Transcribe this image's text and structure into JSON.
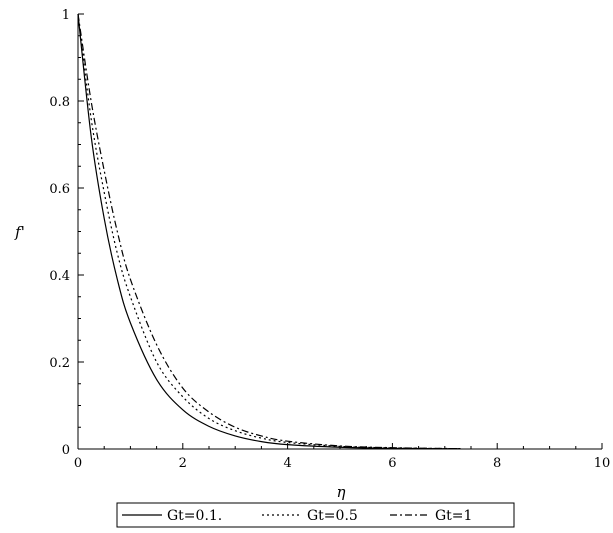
{
  "chart_data": {
    "type": "line",
    "xlabel": "η",
    "ylabel": "f'",
    "xlim": [
      0,
      10
    ],
    "ylim": [
      0,
      1
    ],
    "x_ticks": [
      "0",
      "2",
      "4",
      "6",
      "8",
      "10"
    ],
    "y_ticks": [
      "0",
      "0.2",
      "0.4",
      "0.6",
      "0.8",
      "1"
    ],
    "legend_position": "bottom-center",
    "grid": false,
    "series": [
      {
        "name": "Gt=0.1.",
        "style": "solid",
        "x": [
          0,
          0.25,
          0.5,
          0.75,
          1,
          1.5,
          2,
          2.5,
          3,
          3.5,
          4,
          5,
          6,
          7,
          7.3
        ],
        "y": [
          1,
          0.72,
          0.53,
          0.39,
          0.29,
          0.16,
          0.09,
          0.052,
          0.03,
          0.017,
          0.01,
          0.004,
          0.0015,
          0.0007,
          0.0005
        ]
      },
      {
        "name": "Gt=0.5",
        "style": "dotted",
        "x": [
          0,
          0.25,
          0.5,
          0.75,
          1,
          1.5,
          2,
          2.5,
          3,
          3.5,
          4,
          5,
          6,
          7,
          7.3
        ],
        "y": [
          1,
          0.76,
          0.59,
          0.45,
          0.35,
          0.2,
          0.12,
          0.07,
          0.042,
          0.025,
          0.015,
          0.006,
          0.0025,
          0.001,
          0.0008
        ]
      },
      {
        "name": "Gt=1",
        "style": "dashdot",
        "x": [
          0,
          0.25,
          0.5,
          0.75,
          1,
          1.5,
          2,
          2.5,
          3,
          3.5,
          4,
          5,
          6,
          7,
          7.3
        ],
        "y": [
          1,
          0.8,
          0.64,
          0.5,
          0.39,
          0.24,
          0.14,
          0.085,
          0.05,
          0.03,
          0.018,
          0.007,
          0.003,
          0.0012,
          0.001
        ]
      }
    ]
  }
}
